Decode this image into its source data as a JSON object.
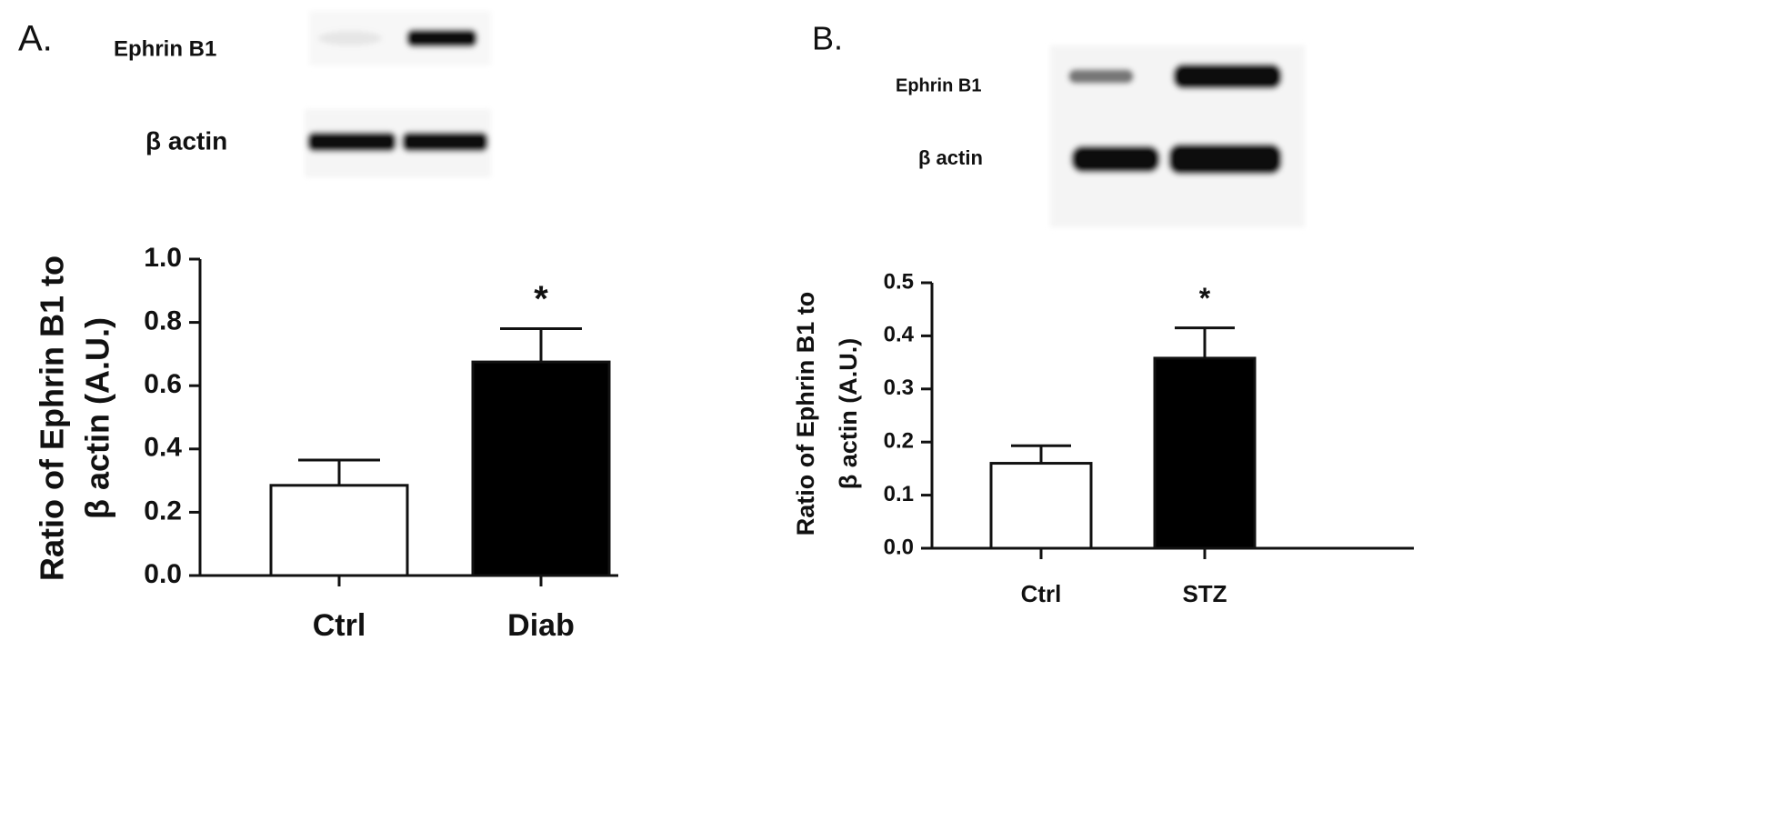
{
  "chart_data": [
    {
      "type": "bar",
      "panel_label": "A.",
      "blot_labels": [
        "Ephrin B1",
        "β  actin"
      ],
      "ylabel": [
        "Ratio of Ephrin B1 to",
        "β  actin (A.U.)"
      ],
      "categories": [
        "Ctrl",
        "Diab"
      ],
      "values": [
        0.285,
        0.675
      ],
      "errors": [
        0.08,
        0.105
      ],
      "value_annotations": [
        null,
        "*"
      ],
      "colors": [
        "#ffffff",
        "#000000"
      ],
      "ylim": [
        0,
        1.0
      ],
      "yticks": [
        {
          "value": 0,
          "label": "0.0"
        },
        0.2,
        0.4,
        0.6,
        0.8,
        {
          "value": 1.0,
          "label": "1.0"
        }
      ]
    },
    {
      "type": "bar",
      "panel_label": "B.",
      "blot_labels": [
        "Ephrin B1",
        "β actin"
      ],
      "ylabel": [
        "Ratio of Ephrin B1 to",
        "β actin (A.U.)"
      ],
      "categories": [
        "Ctrl",
        "STZ"
      ],
      "values": [
        0.16,
        0.358
      ],
      "errors": [
        0.033,
        0.057
      ],
      "value_annotations": [
        null,
        "*"
      ],
      "colors": [
        "#ffffff",
        "#000000"
      ],
      "ylim": [
        0,
        0.5
      ],
      "yticks": [
        {
          "value": 0,
          "label": "0.0"
        },
        0.1,
        0.2,
        0.3,
        0.4,
        0.5
      ]
    }
  ]
}
